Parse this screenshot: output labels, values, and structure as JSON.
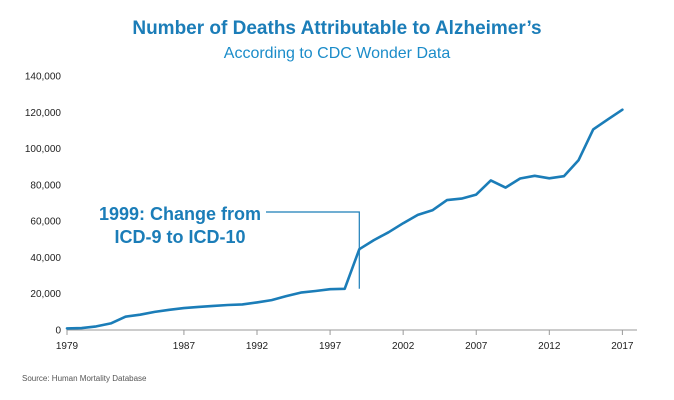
{
  "chart_data": {
    "type": "line",
    "title": "Number of Deaths Attributable to Alzheimer’s",
    "subtitle": "According to CDC Wonder Data",
    "xlabel": "",
    "ylabel": "",
    "xlim": [
      1979,
      2018
    ],
    "ylim": [
      0,
      140000
    ],
    "x_ticks": [
      "1979",
      "1987",
      "1992",
      "1997",
      "2002",
      "2007",
      "2012",
      "2017"
    ],
    "y_ticks": [
      "0",
      "20,000",
      "40,000",
      "60,000",
      "80,000",
      "100,000",
      "120,000",
      "140,000"
    ],
    "series": [
      {
        "name": "Deaths",
        "color": "#1b7db8",
        "x": [
          1979,
          1980,
          1981,
          1982,
          1983,
          1984,
          1985,
          1986,
          1987,
          1988,
          1989,
          1990,
          1991,
          1992,
          1993,
          1994,
          1995,
          1996,
          1997,
          1998,
          1999,
          2000,
          2001,
          2002,
          2003,
          2004,
          2005,
          2006,
          2007,
          2008,
          2009,
          2010,
          2011,
          2012,
          2013,
          2014,
          2015,
          2016,
          2017
        ],
        "values": [
          857,
          1037,
          1965,
          3648,
          7338,
          8420,
          10002,
          11142,
          12089,
          12745,
          13307,
          13768,
          14112,
          15200,
          16500,
          18700,
          20600,
          21500,
          22500,
          22700,
          44536,
          49558,
          53852,
          58866,
          63457,
          65965,
          71599,
          72432,
          74632,
          82476,
          78486,
          83494,
          84974,
          83637,
          84767,
          93541,
          110561,
          116103,
          121404
        ]
      }
    ],
    "annotation": {
      "line1": "1999: Change from",
      "line2": "ICD-9 to ICD-10",
      "x": 1999,
      "y": 22700
    },
    "source": "Source: Human Mortality Database"
  }
}
